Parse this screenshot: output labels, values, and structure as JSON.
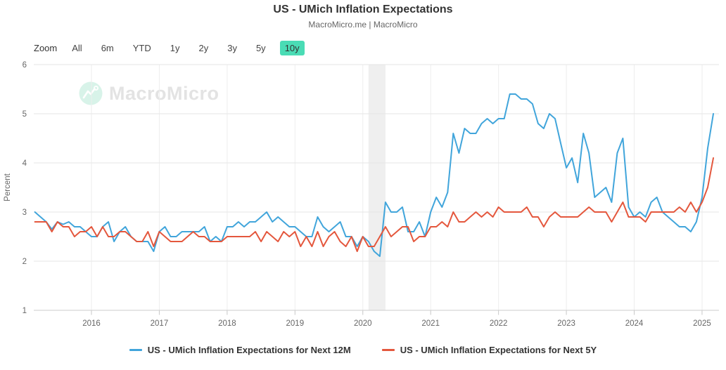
{
  "header": {
    "title": "US - UMich Inflation Expectations",
    "subtitle": "MacroMicro.me | MacroMicro"
  },
  "toolbar": {
    "zoom_label": "Zoom",
    "selected_bg": "#4ADCB5",
    "buttons": [
      {
        "label": "All",
        "selected": false
      },
      {
        "label": "6m",
        "selected": false
      },
      {
        "label": "YTD",
        "selected": false
      },
      {
        "label": "1y",
        "selected": false
      },
      {
        "label": "2y",
        "selected": false
      },
      {
        "label": "3y",
        "selected": false
      },
      {
        "label": "5y",
        "selected": false
      },
      {
        "label": "10y",
        "selected": true
      }
    ]
  },
  "watermark": {
    "text": "MacroMicro",
    "icon_color": "#d8f3e9"
  },
  "y_axis": {
    "title": "Percent",
    "tick_labels": [
      "1",
      "2",
      "3",
      "4",
      "5",
      "6"
    ]
  },
  "x_axis": {
    "ticks": [
      "2016",
      "2017",
      "2018",
      "2019",
      "2020",
      "2021",
      "2022",
      "2023",
      "2024",
      "2025"
    ]
  },
  "legend": {
    "items": [
      {
        "label": "US - UMich Inflation Expectations for Next 12M",
        "color": "#41A5DB"
      },
      {
        "label": "US - UMich Inflation Expectations for Next 5Y",
        "color": "#E4573D"
      }
    ]
  },
  "chart_data": {
    "type": "line",
    "title": "US - UMich Inflation Expectations",
    "subtitle": "MacroMicro.me | MacroMicro",
    "x_start": "2015-03",
    "x_end": "2025-03",
    "x_freq": "monthly",
    "x_tick_labels": [
      "2016",
      "2017",
      "2018",
      "2019",
      "2020",
      "2021",
      "2022",
      "2023",
      "2024",
      "2025"
    ],
    "xlabel": "",
    "ylabel": "Percent",
    "ylim": [
      1,
      6
    ],
    "grid": true,
    "legend_position": "bottom",
    "recession_band": {
      "start": "2020-02",
      "end": "2020-05"
    },
    "series": [
      {
        "name": "US - UMich Inflation Expectations for Next 12M",
        "color": "#41A5DB",
        "values": [
          3.0,
          2.9,
          2.8,
          2.65,
          2.8,
          2.75,
          2.8,
          2.7,
          2.7,
          2.6,
          2.5,
          2.5,
          2.7,
          2.8,
          2.4,
          2.6,
          2.7,
          2.5,
          2.4,
          2.4,
          2.4,
          2.2,
          2.6,
          2.7,
          2.5,
          2.5,
          2.6,
          2.6,
          2.6,
          2.6,
          2.7,
          2.4,
          2.5,
          2.4,
          2.7,
          2.7,
          2.8,
          2.7,
          2.8,
          2.8,
          2.9,
          3.0,
          2.8,
          2.9,
          2.8,
          2.7,
          2.7,
          2.6,
          2.5,
          2.5,
          2.9,
          2.7,
          2.6,
          2.7,
          2.8,
          2.5,
          2.5,
          2.3,
          2.5,
          2.4,
          2.2,
          2.1,
          3.2,
          3.0,
          3.0,
          3.1,
          2.6,
          2.6,
          2.8,
          2.5,
          3.0,
          3.3,
          3.1,
          3.4,
          4.6,
          4.2,
          4.7,
          4.6,
          4.6,
          4.8,
          4.9,
          4.8,
          4.9,
          4.9,
          5.4,
          5.4,
          5.3,
          5.3,
          5.2,
          4.8,
          4.7,
          5.0,
          4.9,
          4.4,
          3.9,
          4.1,
          3.6,
          4.6,
          4.2,
          3.3,
          3.4,
          3.5,
          3.2,
          4.2,
          4.5,
          3.1,
          2.9,
          3.0,
          2.9,
          3.2,
          3.3,
          3.0,
          2.9,
          2.8,
          2.7,
          2.7,
          2.6,
          2.8,
          3.3,
          4.3,
          5.0
        ]
      },
      {
        "name": "US - UMich Inflation Expectations for Next 5Y",
        "color": "#E4573D",
        "values": [
          2.8,
          2.8,
          2.8,
          2.6,
          2.8,
          2.7,
          2.7,
          2.5,
          2.6,
          2.6,
          2.7,
          2.5,
          2.7,
          2.5,
          2.5,
          2.6,
          2.6,
          2.5,
          2.4,
          2.4,
          2.6,
          2.3,
          2.6,
          2.5,
          2.4,
          2.4,
          2.4,
          2.5,
          2.6,
          2.5,
          2.5,
          2.4,
          2.4,
          2.4,
          2.5,
          2.5,
          2.5,
          2.5,
          2.5,
          2.6,
          2.4,
          2.6,
          2.5,
          2.4,
          2.6,
          2.5,
          2.6,
          2.3,
          2.5,
          2.3,
          2.6,
          2.3,
          2.5,
          2.6,
          2.4,
          2.3,
          2.5,
          2.2,
          2.5,
          2.3,
          2.3,
          2.5,
          2.7,
          2.5,
          2.6,
          2.7,
          2.7,
          2.4,
          2.5,
          2.5,
          2.7,
          2.7,
          2.8,
          2.7,
          3.0,
          2.8,
          2.8,
          2.9,
          3.0,
          2.9,
          3.0,
          2.9,
          3.1,
          3.0,
          3.0,
          3.0,
          3.0,
          3.1,
          2.9,
          2.9,
          2.7,
          2.9,
          3.0,
          2.9,
          2.9,
          2.9,
          2.9,
          3.0,
          3.1,
          3.0,
          3.0,
          3.0,
          2.8,
          3.0,
          3.2,
          2.9,
          2.9,
          2.9,
          2.8,
          3.0,
          3.0,
          3.0,
          3.0,
          3.0,
          3.1,
          3.0,
          3.2,
          3.0,
          3.2,
          3.5,
          4.1
        ]
      }
    ]
  }
}
